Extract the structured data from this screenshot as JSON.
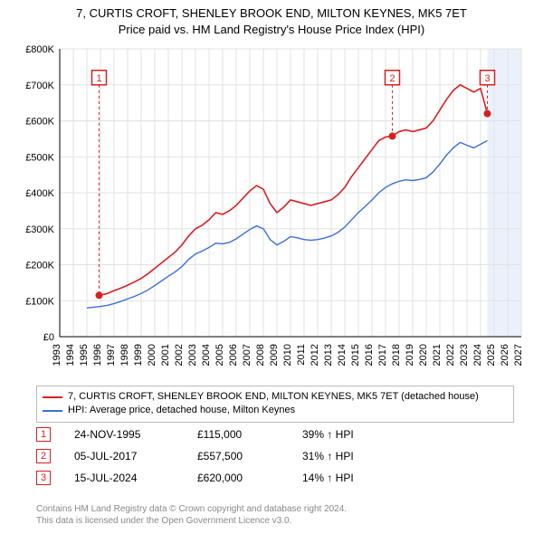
{
  "title": {
    "line1": "7, CURTIS CROFT, SHENLEY BROOK END, MILTON KEYNES, MK5 7ET",
    "line2": "Price paid vs. HM Land Registry's House Price Index (HPI)"
  },
  "chart": {
    "type": "line",
    "background_color": "#ffffff",
    "grid_color": "#e2e2e2",
    "axis_color": "#000000",
    "x": {
      "min": 1993,
      "max": 2027,
      "ticks": [
        1993,
        1994,
        1995,
        1996,
        1997,
        1998,
        1999,
        2000,
        2001,
        2002,
        2003,
        2004,
        2005,
        2006,
        2007,
        2008,
        2009,
        2010,
        2011,
        2012,
        2013,
        2014,
        2015,
        2016,
        2017,
        2018,
        2019,
        2020,
        2021,
        2022,
        2023,
        2024,
        2025,
        2026,
        2027
      ]
    },
    "y": {
      "min": 0,
      "max": 800000,
      "step": 100000,
      "tick_labels": [
        "£0",
        "£100K",
        "£200K",
        "£300K",
        "£400K",
        "£500K",
        "£600K",
        "£700K",
        "£800K"
      ]
    },
    "series": [
      {
        "id": "property",
        "color": "#d62020",
        "width": 1.6,
        "points": [
          [
            1995.9,
            115000
          ],
          [
            1996.5,
            120000
          ],
          [
            1997.0,
            128000
          ],
          [
            1997.5,
            135000
          ],
          [
            1998.0,
            143000
          ],
          [
            1998.5,
            152000
          ],
          [
            1999.0,
            162000
          ],
          [
            1999.5,
            175000
          ],
          [
            2000.0,
            190000
          ],
          [
            2000.5,
            205000
          ],
          [
            2001.0,
            220000
          ],
          [
            2001.5,
            235000
          ],
          [
            2002.0,
            255000
          ],
          [
            2002.5,
            280000
          ],
          [
            2003.0,
            300000
          ],
          [
            2003.5,
            310000
          ],
          [
            2004.0,
            325000
          ],
          [
            2004.5,
            345000
          ],
          [
            2005.0,
            340000
          ],
          [
            2005.5,
            350000
          ],
          [
            2006.0,
            365000
          ],
          [
            2006.5,
            385000
          ],
          [
            2007.0,
            405000
          ],
          [
            2007.5,
            420000
          ],
          [
            2008.0,
            410000
          ],
          [
            2008.5,
            370000
          ],
          [
            2009.0,
            345000
          ],
          [
            2009.5,
            360000
          ],
          [
            2010.0,
            380000
          ],
          [
            2010.5,
            375000
          ],
          [
            2011.0,
            370000
          ],
          [
            2011.5,
            365000
          ],
          [
            2012.0,
            370000
          ],
          [
            2012.5,
            375000
          ],
          [
            2013.0,
            380000
          ],
          [
            2013.5,
            395000
          ],
          [
            2014.0,
            415000
          ],
          [
            2014.5,
            445000
          ],
          [
            2015.0,
            470000
          ],
          [
            2015.5,
            495000
          ],
          [
            2016.0,
            520000
          ],
          [
            2016.5,
            545000
          ],
          [
            2017.0,
            555000
          ],
          [
            2017.5,
            557500
          ],
          [
            2018.0,
            570000
          ],
          [
            2018.5,
            575000
          ],
          [
            2019.0,
            570000
          ],
          [
            2019.5,
            575000
          ],
          [
            2020.0,
            580000
          ],
          [
            2020.5,
            600000
          ],
          [
            2021.0,
            630000
          ],
          [
            2021.5,
            660000
          ],
          [
            2022.0,
            685000
          ],
          [
            2022.5,
            700000
          ],
          [
            2023.0,
            690000
          ],
          [
            2023.5,
            680000
          ],
          [
            2024.0,
            690000
          ],
          [
            2024.5,
            620000
          ]
        ]
      },
      {
        "id": "hpi",
        "color": "#3a6fd8",
        "width": 1.4,
        "points": [
          [
            1995.0,
            80000
          ],
          [
            1995.5,
            82000
          ],
          [
            1996.0,
            84000
          ],
          [
            1996.5,
            87000
          ],
          [
            1997.0,
            92000
          ],
          [
            1997.5,
            98000
          ],
          [
            1998.0,
            105000
          ],
          [
            1998.5,
            112000
          ],
          [
            1999.0,
            120000
          ],
          [
            1999.5,
            130000
          ],
          [
            2000.0,
            142000
          ],
          [
            2000.5,
            155000
          ],
          [
            2001.0,
            168000
          ],
          [
            2001.5,
            180000
          ],
          [
            2002.0,
            195000
          ],
          [
            2002.5,
            215000
          ],
          [
            2003.0,
            230000
          ],
          [
            2003.5,
            238000
          ],
          [
            2004.0,
            248000
          ],
          [
            2004.5,
            260000
          ],
          [
            2005.0,
            258000
          ],
          [
            2005.5,
            262000
          ],
          [
            2006.0,
            272000
          ],
          [
            2006.5,
            285000
          ],
          [
            2007.0,
            298000
          ],
          [
            2007.5,
            308000
          ],
          [
            2008.0,
            300000
          ],
          [
            2008.5,
            270000
          ],
          [
            2009.0,
            255000
          ],
          [
            2009.5,
            265000
          ],
          [
            2010.0,
            278000
          ],
          [
            2010.5,
            275000
          ],
          [
            2011.0,
            270000
          ],
          [
            2011.5,
            268000
          ],
          [
            2012.0,
            270000
          ],
          [
            2012.5,
            274000
          ],
          [
            2013.0,
            280000
          ],
          [
            2013.5,
            290000
          ],
          [
            2014.0,
            305000
          ],
          [
            2014.5,
            325000
          ],
          [
            2015.0,
            345000
          ],
          [
            2015.5,
            362000
          ],
          [
            2016.0,
            380000
          ],
          [
            2016.5,
            400000
          ],
          [
            2017.0,
            415000
          ],
          [
            2017.5,
            425000
          ],
          [
            2018.0,
            432000
          ],
          [
            2018.5,
            436000
          ],
          [
            2019.0,
            434000
          ],
          [
            2019.5,
            437000
          ],
          [
            2020.0,
            442000
          ],
          [
            2020.5,
            458000
          ],
          [
            2021.0,
            480000
          ],
          [
            2021.5,
            505000
          ],
          [
            2022.0,
            525000
          ],
          [
            2022.5,
            540000
          ],
          [
            2023.0,
            532000
          ],
          [
            2023.5,
            525000
          ],
          [
            2024.0,
            535000
          ],
          [
            2024.5,
            545000
          ]
        ]
      }
    ],
    "markers": [
      {
        "n": "1",
        "x": 1995.9,
        "y": 115000,
        "color": "#d62020",
        "box_y": 700000
      },
      {
        "n": "2",
        "x": 2017.5,
        "y": 557500,
        "color": "#d62020",
        "box_y": 700000
      },
      {
        "n": "3",
        "x": 2024.5,
        "y": 620000,
        "color": "#d62020",
        "box_y": 700000
      }
    ],
    "highlight_band": {
      "from": 2024.5,
      "to": 2027,
      "fill": "#eaf1fb"
    }
  },
  "legend": {
    "items": [
      {
        "color": "#d62020",
        "label": "7, CURTIS CROFT, SHENLEY BROOK END, MILTON KEYNES, MK5 7ET (detached house)"
      },
      {
        "color": "#3a6fd8",
        "label": "HPI: Average price, detached house, Milton Keynes"
      }
    ]
  },
  "events": [
    {
      "n": "1",
      "color": "#d62020",
      "date": "24-NOV-1995",
      "price": "£115,000",
      "note": "39% ↑ HPI"
    },
    {
      "n": "2",
      "color": "#d62020",
      "date": "05-JUL-2017",
      "price": "£557,500",
      "note": "31% ↑ HPI"
    },
    {
      "n": "3",
      "color": "#d62020",
      "date": "15-JUL-2024",
      "price": "£620,000",
      "note": "14% ↑ HPI"
    }
  ],
  "footer": {
    "line1": "Contains HM Land Registry data © Crown copyright and database right 2024.",
    "line2": "This data is licensed under the Open Government Licence v3.0."
  }
}
